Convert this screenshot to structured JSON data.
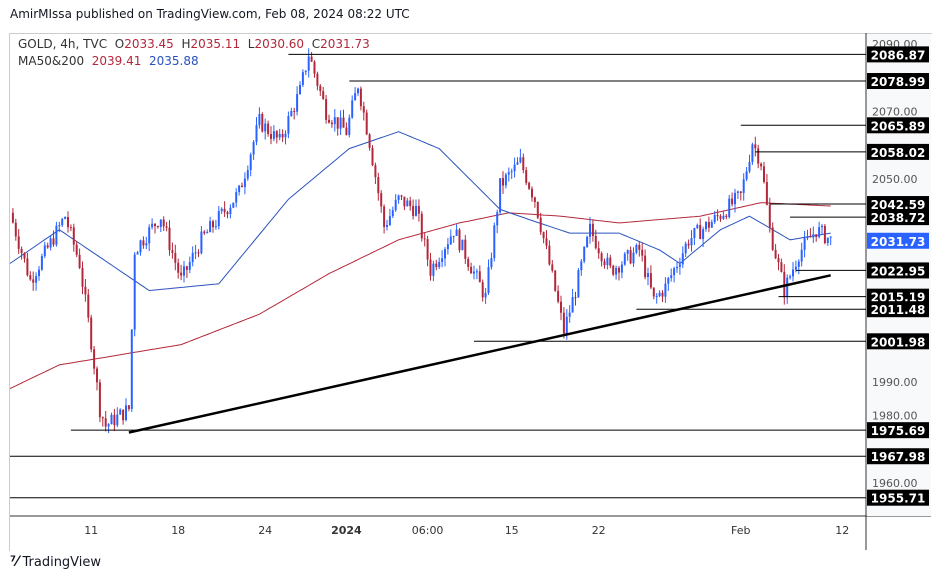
{
  "header": {
    "published": "AmirMIssa published on TradingView.com, Feb 08, 2024 08:22 UTC"
  },
  "legend": {
    "symbol": "GOLD, 4h, TVC",
    "o_label": "O",
    "o": "2033.45",
    "h_label": "H",
    "h": "2035.11",
    "l_label": "L",
    "l": "2030.60",
    "c_label": "C",
    "c": "2031.73",
    "ma_label": "MA50&200",
    "ma50": "2039.41",
    "ma200": "2035.88"
  },
  "logo": "TradingView",
  "colors": {
    "up": "#2962ff",
    "down": "#b2283a",
    "ma50": "#2a52be",
    "ma200": "#b2283a",
    "last": "#2962ff"
  },
  "chart_data": {
    "type": "candlestick",
    "title": "GOLD, 4h, TVC",
    "ylim": [
      1950,
      2093
    ],
    "y_ticks": [
      "2090.00",
      "2070.00",
      "2050.00",
      "1990.00",
      "1980.00",
      "1960.00"
    ],
    "y_tick_values": [
      2090,
      2070,
      2050,
      1990,
      1980,
      1960
    ],
    "x_ticks": [
      {
        "bar": 28,
        "label": "11"
      },
      {
        "bar": 58,
        "label": "18"
      },
      {
        "bar": 88,
        "label": "24"
      },
      {
        "bar": 116,
        "label": "2024"
      },
      {
        "bar": 144,
        "label": "06:00"
      },
      {
        "bar": 173,
        "label": "15"
      },
      {
        "bar": 203,
        "label": "22"
      },
      {
        "bar": 252,
        "label": "Feb"
      },
      {
        "bar": 287,
        "label": "12"
      }
    ],
    "close_path": [
      [
        0,
        2040
      ],
      [
        7,
        2020
      ],
      [
        19,
        2039
      ],
      [
        24,
        2025
      ],
      [
        28,
        2002
      ],
      [
        31,
        1982
      ],
      [
        33,
        1977
      ],
      [
        41,
        1982
      ],
      [
        43,
        2029
      ],
      [
        52,
        2039
      ],
      [
        59,
        2020
      ],
      [
        66,
        2032
      ],
      [
        79,
        2046
      ],
      [
        86,
        2067
      ],
      [
        93,
        2061
      ],
      [
        100,
        2076
      ],
      [
        103,
        2087
      ],
      [
        109,
        2070
      ],
      [
        116,
        2064
      ],
      [
        120,
        2078
      ],
      [
        124,
        2061
      ],
      [
        129,
        2036
      ],
      [
        134,
        2044
      ],
      [
        140,
        2041
      ],
      [
        145,
        2023
      ],
      [
        153,
        2035
      ],
      [
        164,
        2015
      ],
      [
        169,
        2048
      ],
      [
        176,
        2055
      ],
      [
        181,
        2044
      ],
      [
        188,
        2017
      ],
      [
        191,
        2005
      ],
      [
        195,
        2017
      ],
      [
        200,
        2035
      ],
      [
        207,
        2023
      ],
      [
        217,
        2029
      ],
      [
        222,
        2014
      ],
      [
        226,
        2018
      ],
      [
        234,
        2032
      ],
      [
        243,
        2038
      ],
      [
        252,
        2045
      ],
      [
        256,
        2061
      ],
      [
        259,
        2055
      ],
      [
        262,
        2035
      ],
      [
        267,
        2017
      ],
      [
        272,
        2028
      ],
      [
        278,
        2035
      ],
      [
        283,
        2032
      ]
    ],
    "ma50_path": [
      [
        0,
        2025
      ],
      [
        17,
        2035
      ],
      [
        48,
        2017
      ],
      [
        72,
        2019
      ],
      [
        96,
        2044
      ],
      [
        117,
        2059
      ],
      [
        134,
        2064
      ],
      [
        148,
        2059
      ],
      [
        169,
        2041
      ],
      [
        179,
        2038
      ],
      [
        193,
        2034
      ],
      [
        210,
        2034
      ],
      [
        224,
        2029
      ],
      [
        231,
        2025
      ],
      [
        245,
        2035
      ],
      [
        255,
        2039
      ],
      [
        269,
        2032
      ],
      [
        283,
        2034
      ]
    ],
    "ma200_path": [
      [
        0,
        1988
      ],
      [
        17,
        1995
      ],
      [
        38,
        1998
      ],
      [
        59,
        2001
      ],
      [
        86,
        2010
      ],
      [
        110,
        2022
      ],
      [
        134,
        2032
      ],
      [
        155,
        2037
      ],
      [
        172,
        2040
      ],
      [
        190,
        2039
      ],
      [
        210,
        2037
      ],
      [
        238,
        2039
      ],
      [
        259,
        2043
      ],
      [
        283,
        2042
      ]
    ],
    "trendline": [
      [
        41,
        1975
      ],
      [
        283,
        2021.5
      ]
    ],
    "levels": [
      {
        "value": 2086.87,
        "label": "2086.87",
        "from_bar": 96
      },
      {
        "value": 2078.99,
        "label": "2078.99",
        "from_bar": 117
      },
      {
        "value": 2065.89,
        "label": "2065.89",
        "from_bar": 252
      },
      {
        "value": 2058.02,
        "label": "2058.02",
        "from_bar": 257
      },
      {
        "value": 2042.59,
        "label": "2042.59",
        "from_bar": 262
      },
      {
        "value": 2038.72,
        "label": "2038.72",
        "from_bar": 269
      },
      {
        "value": 2022.95,
        "label": "2022.95",
        "from_bar": 271
      },
      {
        "value": 2015.19,
        "label": "2015.19",
        "from_bar": 265
      },
      {
        "value": 2011.48,
        "label": "2011.48",
        "from_bar": 216
      },
      {
        "value": 2001.98,
        "label": "2001.98",
        "from_bar": 160
      },
      {
        "value": 1975.69,
        "label": "1975.69",
        "from_bar": 21
      },
      {
        "value": 1967.98,
        "label": "1967.98",
        "from_bar": 0
      },
      {
        "value": 1955.71,
        "label": "1955.71",
        "from_bar": 0
      }
    ],
    "last_price": {
      "value": 2031.73,
      "label": "2031.73"
    }
  }
}
